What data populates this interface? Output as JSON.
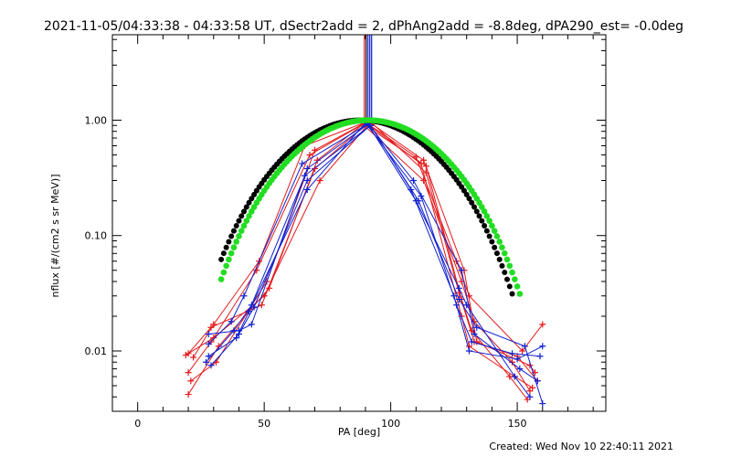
{
  "chart_data": {
    "type": "line",
    "title": "2021-11-05/04:33:38 - 04:33:58 UT, dSectr2add = 2, dPhAng2add = -8.8deg, dPA290_est= -0.0deg",
    "xlabel": "PA [deg]",
    "ylabel": "nflux [#/(cm2 s sr MeV)]",
    "footer": "Created: Wed Nov 10 22:40:11 2021",
    "xlim": [
      -10,
      185
    ],
    "ylim": [
      0.003,
      5.5
    ],
    "yscale": "log",
    "xticks": [
      "0",
      "50",
      "100",
      "150"
    ],
    "xtick_values": [
      0,
      50,
      100,
      150
    ],
    "yticks": [
      "1.00",
      "0.10",
      "0.01"
    ],
    "ytick_values": [
      1.0,
      0.1,
      0.01
    ],
    "grid": false,
    "legend": "none",
    "colors": {
      "red": "#e41a1c",
      "blue": "#1020d0",
      "green": "#22dd22",
      "black": "#000000"
    },
    "series": [
      {
        "color": "red",
        "x": [
          20,
          29,
          49,
          70,
          90,
          114,
          128,
          132,
          147,
          154
        ],
        "y": [
          0.0095,
          0.016,
          0.025,
          0.38,
          0.9,
          0.4,
          0.028,
          0.015,
          0.006,
          0.0038
        ]
      },
      {
        "color": "red",
        "x": [
          20,
          32,
          52,
          71,
          89,
          113,
          128,
          133,
          148,
          155
        ],
        "y": [
          0.0042,
          0.011,
          0.035,
          0.45,
          0.92,
          0.3,
          0.04,
          0.018,
          0.008,
          0.0045
        ]
      },
      {
        "color": "red",
        "x": [
          20,
          29,
          47,
          68,
          90,
          112,
          128,
          131,
          149,
          156
        ],
        "y": [
          0.0065,
          0.012,
          0.05,
          0.5,
          0.95,
          0.42,
          0.02,
          0.011,
          0.006,
          0.0048
        ]
      },
      {
        "color": "red",
        "x": [
          19,
          30,
          50,
          72,
          92,
          114,
          127,
          133,
          150,
          158
        ],
        "y": [
          0.0092,
          0.013,
          0.03,
          0.3,
          0.97,
          0.35,
          0.032,
          0.012,
          0.009,
          0.0055
        ]
      },
      {
        "color": "red",
        "x": [
          21,
          31,
          51,
          70,
          91,
          113,
          129,
          134,
          155,
          157
        ],
        "y": [
          0.0055,
          0.008,
          0.04,
          0.55,
          0.98,
          0.45,
          0.05,
          0.012,
          0.0075,
          0.0065
        ]
      },
      {
        "color": "red",
        "x": [
          22,
          30,
          48,
          66,
          90,
          110,
          126,
          131,
          152,
          160
        ],
        "y": [
          0.0088,
          0.017,
          0.06,
          0.6,
          0.96,
          0.48,
          0.06,
          0.03,
          0.01,
          0.017
        ]
      },
      {
        "color": "blue",
        "x": [
          28,
          40,
          45,
          67,
          91,
          110,
          127,
          130,
          149,
          155
        ],
        "y": [
          0.014,
          0.015,
          0.017,
          0.38,
          0.92,
          0.2,
          0.035,
          0.025,
          0.006,
          0.004
        ]
      },
      {
        "color": "blue",
        "x": [
          27,
          38,
          45,
          66,
          92,
          108,
          125,
          131,
          150,
          160
        ],
        "y": [
          0.008,
          0.015,
          0.025,
          0.33,
          0.9,
          0.25,
          0.03,
          0.01,
          0.0085,
          0.011
        ]
      },
      {
        "color": "blue",
        "x": [
          28,
          39,
          44,
          67,
          90,
          112,
          126,
          132,
          148,
          159
        ],
        "y": [
          0.009,
          0.013,
          0.022,
          0.25,
          0.95,
          0.22,
          0.025,
          0.012,
          0.0095,
          0.009
        ]
      },
      {
        "color": "blue",
        "x": [
          28,
          37,
          42,
          65,
          91,
          109,
          128,
          133,
          151,
          158
        ],
        "y": [
          0.0115,
          0.018,
          0.03,
          0.42,
          0.93,
          0.3,
          0.05,
          0.014,
          0.007,
          0.0055
        ]
      },
      {
        "color": "blue",
        "x": [
          29,
          40,
          46,
          67,
          92,
          111,
          127,
          134,
          153,
          160
        ],
        "y": [
          0.0075,
          0.014,
          0.024,
          0.3,
          0.9,
          0.2,
          0.028,
          0.016,
          0.011,
          0.0035
        ]
      }
    ],
    "fits": [
      {
        "color": "black",
        "center": 88,
        "power": 5.0,
        "x_from": 33,
        "x_to": 148
      },
      {
        "color": "green",
        "center": 91,
        "power": 5.0,
        "x_from": 33,
        "x_to": 151
      }
    ],
    "marker_bars": {
      "x": 91,
      "y_top": 5.5,
      "y_bottom": 1.0,
      "colors": [
        "red",
        "black",
        "blue"
      ]
    }
  }
}
